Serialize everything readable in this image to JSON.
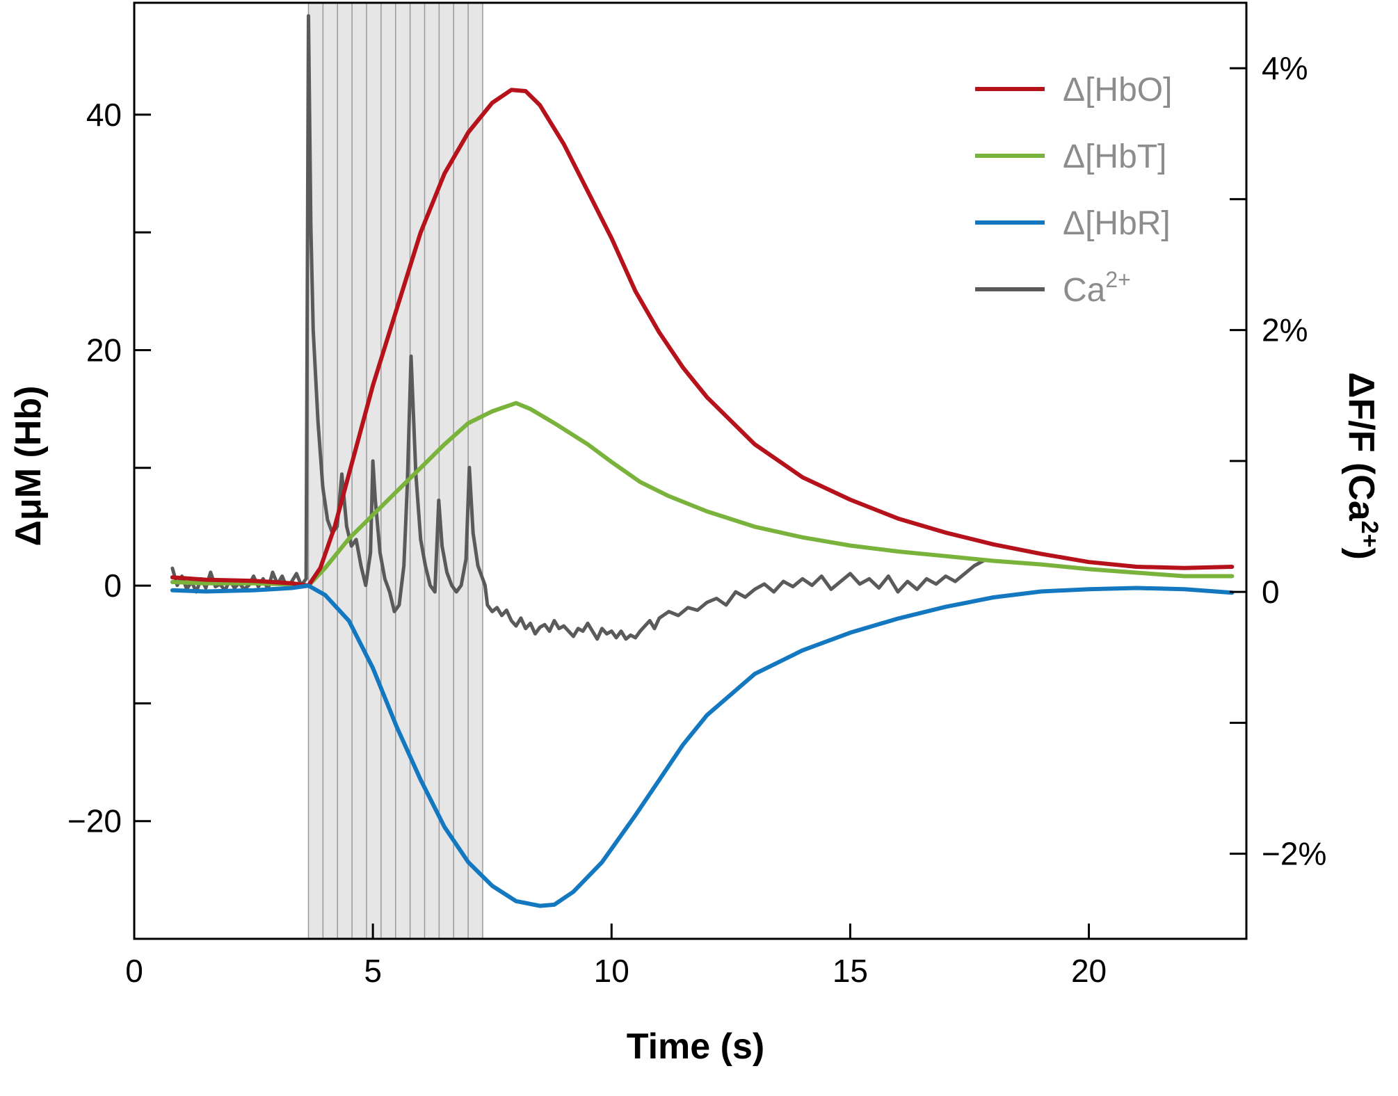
{
  "chart_data": {
    "type": "line",
    "title": "",
    "xlabel": "Time (s)",
    "ylabel": "ΔμM (Hb)",
    "ylabel_right": "ΔF/F (Ca2+)",
    "ylabel_right_text": {
      "base": "ΔF/F (Ca",
      "sup": "2+",
      "end": ")"
    },
    "xlim": [
      0,
      23.3
    ],
    "ylim": [
      -30,
      49.5
    ],
    "ylim_right": [
      -2.65,
      4.5
    ],
    "x_ticks": [
      0,
      5,
      10,
      15,
      20
    ],
    "x_tick_labels": [
      "0",
      "5",
      "10",
      "15",
      "20"
    ],
    "y_ticks": [
      -20,
      -10,
      0,
      10,
      20,
      30,
      40
    ],
    "y_tick_labels": [
      "−20",
      "",
      "0",
      "",
      "20",
      "",
      "40"
    ],
    "y_right_ticks": [
      -2,
      -1,
      0,
      1,
      2,
      3,
      4
    ],
    "y_right_tick_labels": [
      "−2%",
      "",
      "0",
      "",
      "2%",
      "",
      "4%"
    ],
    "grid": false,
    "legend_position": "top-right",
    "stimulus_window": {
      "start": 3.65,
      "end": 7.3,
      "pulses": 12,
      "fill": "#e6e6e6",
      "line": "#9a9a9a"
    },
    "series": [
      {
        "name": "Δ[HbO]",
        "axis": "left",
        "color": "#b5121b",
        "x": [
          0.8,
          1.5,
          2.5,
          3.3,
          3.65,
          3.9,
          4.2,
          4.6,
          5.0,
          5.5,
          6.0,
          6.5,
          7.0,
          7.5,
          7.9,
          8.2,
          8.5,
          9.0,
          9.5,
          10.0,
          10.5,
          11.0,
          11.5,
          12.0,
          13.0,
          14.0,
          15.0,
          16.0,
          17.0,
          18.0,
          19.0,
          20.0,
          21.0,
          22.0,
          23.0
        ],
        "values": [
          0.7,
          0.5,
          0.4,
          0.2,
          0.0,
          1.5,
          5.0,
          11.0,
          17.0,
          23.5,
          30.0,
          35.0,
          38.5,
          41.0,
          42.1,
          42.0,
          40.8,
          37.5,
          33.5,
          29.5,
          25.0,
          21.5,
          18.5,
          16.0,
          12.0,
          9.2,
          7.3,
          5.7,
          4.5,
          3.5,
          2.7,
          2.0,
          1.6,
          1.5,
          1.6
        ]
      },
      {
        "name": "Δ[HbT]",
        "axis": "left",
        "color": "#7ab33c",
        "x": [
          0.8,
          1.5,
          2.5,
          3.3,
          3.65,
          4.0,
          4.5,
          5.0,
          5.5,
          6.0,
          6.5,
          7.0,
          7.5,
          8.0,
          8.3,
          8.8,
          9.5,
          10.0,
          10.6,
          11.2,
          12.0,
          13.0,
          14.0,
          15.0,
          16.0,
          17.0,
          18.0,
          19.0,
          20.0,
          21.0,
          22.0,
          23.0
        ],
        "values": [
          0.3,
          0.2,
          0.2,
          0.1,
          0.0,
          1.5,
          4.0,
          6.0,
          8.0,
          10.0,
          12.0,
          13.8,
          14.8,
          15.5,
          15.0,
          13.8,
          12.0,
          10.5,
          8.8,
          7.6,
          6.3,
          5.0,
          4.1,
          3.4,
          2.9,
          2.5,
          2.1,
          1.8,
          1.4,
          1.1,
          0.8,
          0.8
        ]
      },
      {
        "name": "Δ[HbR]",
        "axis": "left",
        "color": "#1478c0",
        "x": [
          0.8,
          1.5,
          2.5,
          3.3,
          3.65,
          4.0,
          4.5,
          5.0,
          5.5,
          6.0,
          6.5,
          7.0,
          7.5,
          8.0,
          8.5,
          8.8,
          9.2,
          9.8,
          10.5,
          11.0,
          11.5,
          12.0,
          13.0,
          14.0,
          15.0,
          16.0,
          17.0,
          18.0,
          19.0,
          20.0,
          21.0,
          22.0,
          23.0
        ],
        "values": [
          -0.4,
          -0.5,
          -0.4,
          -0.2,
          0.0,
          -0.8,
          -3.0,
          -7.0,
          -12.0,
          -16.5,
          -20.5,
          -23.5,
          -25.5,
          -26.8,
          -27.2,
          -27.1,
          -26.0,
          -23.5,
          -19.5,
          -16.5,
          -13.5,
          -11.0,
          -7.5,
          -5.5,
          -4.0,
          -2.8,
          -1.8,
          -1.0,
          -0.5,
          -0.3,
          -0.2,
          -0.3,
          -0.6
        ]
      },
      {
        "name": "Ca2+",
        "name_text": {
          "base": "Ca",
          "sup": "2+"
        },
        "axis": "right",
        "color": "#5a5a5a",
        "x": [
          0.8,
          0.9,
          1.0,
          1.1,
          1.2,
          1.3,
          1.4,
          1.5,
          1.6,
          1.7,
          1.8,
          1.9,
          2.0,
          2.1,
          2.2,
          2.3,
          2.4,
          2.5,
          2.6,
          2.7,
          2.8,
          2.9,
          3.0,
          3.1,
          3.2,
          3.3,
          3.4,
          3.5,
          3.6,
          3.65,
          3.7,
          3.75,
          3.85,
          3.95,
          4.05,
          4.15,
          4.25,
          4.35,
          4.45,
          4.55,
          4.65,
          4.75,
          4.85,
          4.95,
          5.0,
          5.05,
          5.15,
          5.25,
          5.35,
          5.45,
          5.55,
          5.65,
          5.72,
          5.8,
          5.9,
          6.0,
          6.1,
          6.2,
          6.3,
          6.38,
          6.45,
          6.55,
          6.65,
          6.75,
          6.85,
          6.95,
          7.02,
          7.1,
          7.2,
          7.3,
          7.35,
          7.4,
          7.5,
          7.6,
          7.7,
          7.8,
          7.9,
          8.0,
          8.1,
          8.2,
          8.3,
          8.4,
          8.5,
          8.6,
          8.7,
          8.8,
          8.9,
          9.0,
          9.1,
          9.2,
          9.3,
          9.4,
          9.5,
          9.6,
          9.7,
          9.8,
          9.9,
          10.0,
          10.1,
          10.2,
          10.3,
          10.4,
          10.5,
          10.6,
          10.7,
          10.8,
          10.9,
          11.0,
          11.2,
          11.4,
          11.6,
          11.8,
          12.0,
          12.2,
          12.4,
          12.6,
          12.8,
          13.0,
          13.2,
          13.4,
          13.6,
          13.8,
          14.0,
          14.2,
          14.4,
          14.6,
          14.8,
          15.0,
          15.2,
          15.4,
          15.6,
          15.8,
          16.0,
          16.2,
          16.4,
          16.6,
          16.8,
          17.0,
          17.2,
          17.4,
          17.6,
          17.8
        ],
        "values": [
          0.18,
          0.05,
          0.12,
          0.02,
          0.08,
          0.0,
          0.1,
          0.03,
          0.15,
          0.04,
          0.06,
          0.01,
          0.09,
          0.03,
          0.07,
          0.02,
          0.05,
          0.12,
          0.04,
          0.1,
          0.02,
          0.15,
          0.06,
          0.12,
          0.03,
          0.08,
          0.14,
          0.05,
          0.1,
          4.4,
          2.8,
          2.0,
          1.3,
          0.8,
          0.55,
          0.45,
          0.5,
          0.9,
          0.5,
          0.35,
          0.4,
          0.2,
          0.05,
          0.3,
          1.0,
          0.7,
          0.3,
          0.1,
          0.0,
          -0.15,
          -0.1,
          0.2,
          0.8,
          1.8,
          0.9,
          0.4,
          0.2,
          0.05,
          0.0,
          0.7,
          0.35,
          0.15,
          0.05,
          0.0,
          0.05,
          0.25,
          0.95,
          0.45,
          0.2,
          0.1,
          0.05,
          -0.1,
          -0.15,
          -0.12,
          -0.18,
          -0.14,
          -0.22,
          -0.26,
          -0.2,
          -0.28,
          -0.24,
          -0.32,
          -0.27,
          -0.25,
          -0.3,
          -0.22,
          -0.28,
          -0.26,
          -0.3,
          -0.34,
          -0.28,
          -0.3,
          -0.24,
          -0.3,
          -0.36,
          -0.28,
          -0.32,
          -0.3,
          -0.35,
          -0.3,
          -0.36,
          -0.33,
          -0.35,
          -0.3,
          -0.26,
          -0.22,
          -0.28,
          -0.2,
          -0.15,
          -0.18,
          -0.12,
          -0.14,
          -0.08,
          -0.05,
          -0.1,
          0.0,
          -0.04,
          0.02,
          0.06,
          0.0,
          0.08,
          0.04,
          0.1,
          0.05,
          0.12,
          0.02,
          0.08,
          0.14,
          0.06,
          0.1,
          0.03,
          0.12,
          0.0,
          0.08,
          0.02,
          0.1,
          0.06,
          0.12,
          0.08,
          0.14,
          0.2,
          0.24
        ]
      }
    ]
  }
}
